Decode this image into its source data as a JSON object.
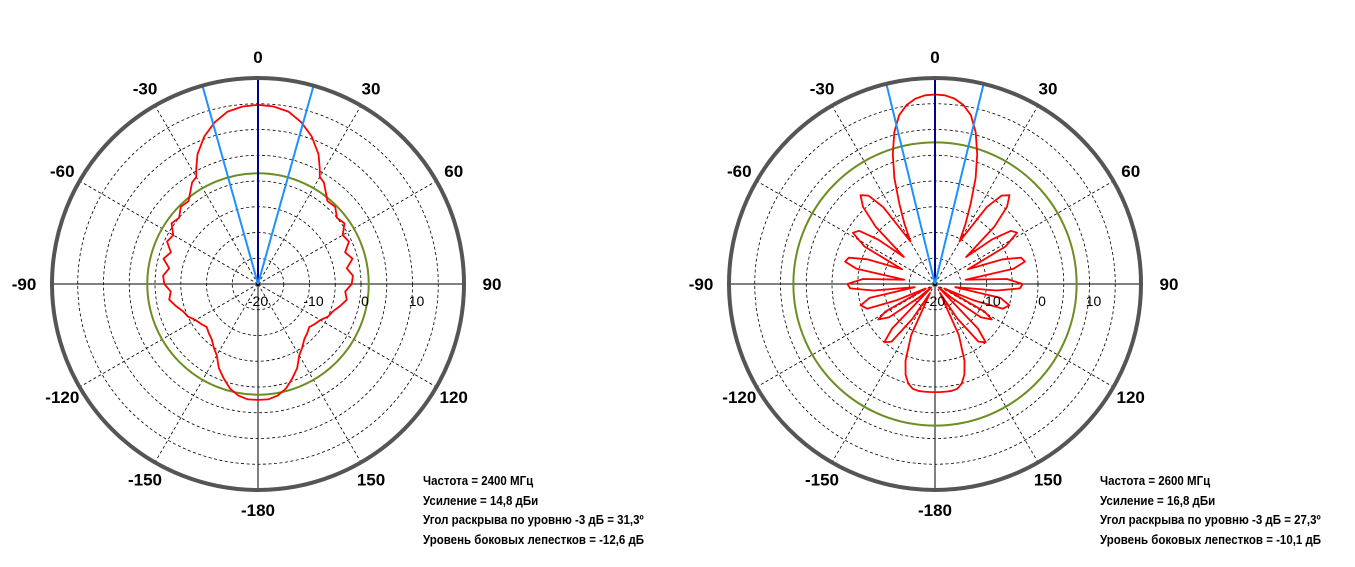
{
  "colors": {
    "outer_ring": "#555555",
    "pattern": "#ff0000",
    "gain_circle": "#6b8e23",
    "main_axis": "#00008b",
    "beamwidth_lines": "#1e90ff"
  },
  "info_blocks": [
    {
      "frequency": "Частота = 2400 МГц",
      "gain": "Усиление = 14,8 дБи",
      "beamwidth": "Угол раскрыва по уровню -3 дБ = 31,3º",
      "sidelobe": "Уровень боковых лепестков = -12,6 дБ"
    },
    {
      "frequency": "Частота = 2600 МГц",
      "gain": "Усиление = 16,8 дБи",
      "beamwidth": "Угол раскрыва по уровню -3 дБ = 27,3º",
      "sidelobe": "Уровень боковых лепестков = -10,1 дБ"
    }
  ],
  "chart_data": [
    {
      "type": "polar",
      "angular_ticks": [
        "0",
        "30",
        "60",
        "90",
        "120",
        "150",
        "-180",
        "-150",
        "-120",
        "-90",
        "-60",
        "-30"
      ],
      "radial_ticks": [
        "-20",
        "-10",
        "0",
        "10"
      ],
      "rlim": [
        -20,
        20
      ],
      "grid": true,
      "gain_circle_db": 1.5,
      "beamwidth_deg": 31.3,
      "series": [
        {
          "theta": [
            0,
            5,
            10,
            15,
            20,
            25,
            28,
            30,
            33,
            40,
            45,
            50,
            55,
            60,
            65,
            70,
            75,
            80,
            85,
            90,
            95,
            100,
            105,
            110,
            115,
            120,
            125,
            130,
            135,
            140,
            145,
            150,
            155,
            160,
            165,
            170,
            175,
            180
          ],
          "r": [
            14.8,
            14.6,
            14.0,
            12.5,
            10.5,
            7.8,
            5.5,
            4.0,
            3.5,
            1.0,
            1.2,
            0.0,
            0.5,
            -1.0,
            -0.5,
            -2.0,
            -1.0,
            -2.5,
            -1.5,
            -1.8,
            -3.0,
            -2.5,
            -3.5,
            -4.5,
            -5.0,
            -6.0,
            -6.5,
            -7.0,
            -6.5,
            -6.0,
            -5.0,
            -4.0,
            -2.0,
            -0.5,
            1.0,
            2.0,
            2.5,
            2.5
          ]
        }
      ]
    },
    {
      "type": "polar",
      "angular_ticks": [
        "0",
        "30",
        "60",
        "90",
        "120",
        "150",
        "-180",
        "-150",
        "-120",
        "-90",
        "-60",
        "-30"
      ],
      "radial_ticks": [
        "-20",
        "-10",
        "0",
        "10"
      ],
      "rlim": [
        -20,
        20
      ],
      "grid": true,
      "gain_circle_db": 7.5,
      "beamwidth_deg": 27.3,
      "series": [
        {
          "theta": [
            0,
            3,
            6,
            9,
            12,
            15,
            18,
            21,
            24,
            27,
            30,
            34,
            37,
            40,
            43,
            46,
            49,
            52,
            55,
            58,
            62,
            66,
            70,
            73,
            76,
            79,
            82,
            86,
            90,
            93,
            96,
            99,
            102,
            106,
            110,
            113,
            116,
            119,
            122,
            126,
            130,
            133,
            136,
            139,
            143,
            147,
            151,
            155,
            159,
            162,
            165,
            168,
            171,
            174,
            177,
            180
          ],
          "r": [
            16.8,
            16.7,
            16.2,
            15.2,
            13.5,
            10.5,
            6.5,
            2.0,
            -3.0,
            -7.0,
            -10.5,
            -2.0,
            1.5,
            2.5,
            0.5,
            -4.0,
            -12.0,
            -6.0,
            -2.0,
            -1.2,
            -4.5,
            -13.0,
            -6.0,
            -2.5,
            -2.0,
            -4.5,
            -14.0,
            -6.0,
            -3.0,
            -3.5,
            -8.0,
            -16.0,
            -7.0,
            -5.0,
            -6.0,
            -12.0,
            -18.0,
            -9.0,
            -7.0,
            -9.0,
            -16.0,
            -19.0,
            -8.0,
            -5.0,
            -6.0,
            -12.0,
            -18.0,
            -9.0,
            -4.0,
            -1.5,
            0.0,
            0.8,
            1.0,
            1.0,
            1.0,
            1.0
          ]
        }
      ]
    }
  ]
}
